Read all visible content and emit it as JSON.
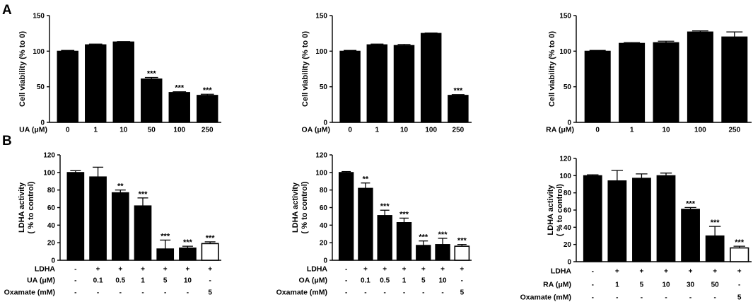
{
  "panel_labels": [
    "A",
    "B"
  ],
  "chart_data": [
    {
      "type": "bar",
      "ylabel": "Cell viability (% to 0)",
      "ylim": [
        0,
        150
      ],
      "yticks": [
        0,
        50,
        100,
        150
      ],
      "xlabel": "UA (μM)",
      "categories": [
        "0",
        "1",
        "10",
        "50",
        "100",
        "250"
      ],
      "values": [
        100,
        109,
        113,
        61,
        42,
        38
      ],
      "errors": [
        1,
        1,
        0.5,
        2,
        1,
        1.5
      ],
      "open_bars": [],
      "significance": [
        "",
        "",
        "",
        "***",
        "***",
        "***"
      ]
    },
    {
      "type": "bar",
      "ylabel": "Cell viability (% to 0)",
      "ylim": [
        0,
        150
      ],
      "yticks": [
        0,
        50,
        100,
        150
      ],
      "xlabel": "OA (μM)",
      "categories": [
        "0",
        "1",
        "10",
        "100",
        "250"
      ],
      "values": [
        100,
        109,
        108,
        125,
        38
      ],
      "errors": [
        1,
        1,
        1.5,
        0.5,
        1
      ],
      "open_bars": [],
      "significance": [
        "",
        "",
        "",
        "",
        "***"
      ]
    },
    {
      "type": "bar",
      "ylabel": "Cell viability (% to 0)",
      "ylim": [
        0,
        150
      ],
      "yticks": [
        0,
        50,
        100,
        150
      ],
      "xlabel": "RA (μM)",
      "categories": [
        "0",
        "1",
        "10",
        "100",
        "250"
      ],
      "values": [
        100,
        111,
        112,
        127,
        120
      ],
      "errors": [
        1,
        1,
        2,
        1.5,
        7
      ],
      "open_bars": [],
      "significance": [
        "",
        "",
        "",
        "",
        ""
      ]
    },
    {
      "type": "bar",
      "ylabel": "LDHA activity\n( % to control)",
      "ylim": [
        0,
        120
      ],
      "yticks": [
        0,
        20,
        40,
        60,
        80,
        100,
        120
      ],
      "rows": [
        {
          "label": "LDHA",
          "values": [
            "-",
            "+",
            "+",
            "+",
            "+",
            "+",
            "+"
          ]
        },
        {
          "label": "UA (μM)",
          "values": [
            "-",
            "0.1",
            "0.5",
            "1",
            "5",
            "10",
            "-"
          ]
        },
        {
          "label": "Oxamate (mM)",
          "values": [
            "-",
            "-",
            "-",
            "-",
            "-",
            "-",
            "5"
          ]
        }
      ],
      "values": [
        100,
        95,
        77,
        62,
        13,
        14,
        19
      ],
      "errors": [
        2,
        11,
        3,
        9,
        10,
        2,
        2
      ],
      "open_bars": [
        6
      ],
      "significance": [
        "",
        "",
        "**",
        "***",
        "***",
        "***",
        "***"
      ]
    },
    {
      "type": "bar",
      "ylabel": "LDHA activity\n( % to control)",
      "ylim": [
        0,
        120
      ],
      "yticks": [
        0,
        20,
        40,
        60,
        80,
        100,
        120
      ],
      "rows": [
        {
          "label": "LDHA",
          "values": [
            "-",
            "+",
            "+",
            "+",
            "+",
            "+",
            "+"
          ]
        },
        {
          "label": "OA (μM)",
          "values": [
            "-",
            "0.1",
            "0.5",
            "1",
            "5",
            "10",
            "-"
          ]
        },
        {
          "label": "Oxamate (mM)",
          "values": [
            "-",
            "-",
            "-",
            "-",
            "-",
            "-",
            "5"
          ]
        }
      ],
      "values": [
        100,
        82,
        51,
        43,
        17,
        18,
        16
      ],
      "errors": [
        1,
        6,
        6,
        5,
        5,
        7,
        2
      ],
      "open_bars": [
        6
      ],
      "significance": [
        "",
        "**",
        "***",
        "***",
        "***",
        "***",
        "***"
      ]
    },
    {
      "type": "bar",
      "ylabel": "LDHA activity\n( % to control)",
      "ylim": [
        0,
        120
      ],
      "yticks": [
        0,
        20,
        40,
        60,
        80,
        100,
        120
      ],
      "rows": [
        {
          "label": "LDHA",
          "values": [
            "-",
            "+",
            "+",
            "+",
            "+",
            "+",
            "+"
          ]
        },
        {
          "label": "RA (μM)",
          "values": [
            "-",
            "1",
            "5",
            "10",
            "30",
            "50",
            "-"
          ]
        },
        {
          "label": "Oxamate (mM)",
          "values": [
            "-",
            "-",
            "-",
            "-",
            "-",
            "-",
            "5"
          ]
        }
      ],
      "values": [
        100,
        94,
        97,
        100,
        61,
        30,
        16
      ],
      "errors": [
        1,
        12,
        5,
        3,
        2,
        11,
        2
      ],
      "open_bars": [
        6
      ],
      "significance": [
        "",
        "",
        "",
        "",
        "***",
        "***",
        "***"
      ]
    }
  ]
}
